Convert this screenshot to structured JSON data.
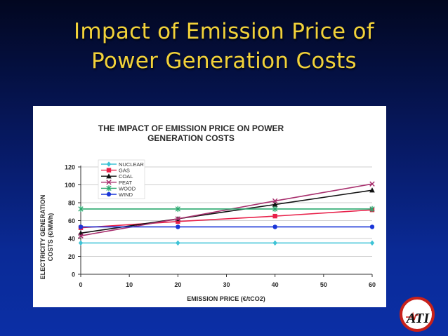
{
  "slide": {
    "title_line1": "Impact of Emission Price of",
    "title_line2": "Power Generation Costs"
  },
  "logo": {
    "text": "ATI"
  },
  "chart_data": {
    "type": "line",
    "title_line1": "THE IMPACT OF EMISSION PRICE ON POWER",
    "title_line2": "GENERATION COSTS",
    "xlabel": "EMISSION PRICE (€/tCO2)",
    "ylabel_line1": "ELECTRICITY GENERATION",
    "ylabel_line2": "COSTS (€/MWh)",
    "xlim": [
      0,
      60
    ],
    "ylim": [
      0,
      120
    ],
    "x_ticks": [
      0,
      10,
      20,
      30,
      40,
      50,
      60
    ],
    "y_ticks": [
      0,
      20,
      40,
      60,
      80,
      100,
      120
    ],
    "grid": "horizontal",
    "legend_position": "top-left",
    "series": [
      {
        "name": "NUCLEAR",
        "color": "#3ec3d6",
        "marker": "diamond",
        "x": [
          0,
          20,
          40,
          60
        ],
        "y": [
          35,
          35,
          35,
          35
        ]
      },
      {
        "name": "GAS",
        "color": "#e8214a",
        "marker": "square",
        "x": [
          0,
          20,
          40,
          60
        ],
        "y": [
          52,
          59,
          65,
          72
        ]
      },
      {
        "name": "COAL",
        "color": "#111111",
        "marker": "triangle",
        "x": [
          0,
          20,
          40,
          60
        ],
        "y": [
          46,
          62,
          78,
          94
        ]
      },
      {
        "name": "PEAT",
        "color": "#a8306e",
        "marker": "x",
        "x": [
          0,
          20,
          40,
          60
        ],
        "y": [
          43,
          62,
          82,
          101
        ]
      },
      {
        "name": "WOOD",
        "color": "#2aa86e",
        "marker": "star",
        "x": [
          0,
          20,
          40,
          60
        ],
        "y": [
          73,
          73,
          73,
          73
        ]
      },
      {
        "name": "WIND",
        "color": "#1a36d8",
        "marker": "circle",
        "x": [
          0,
          20,
          40,
          60
        ],
        "y": [
          53,
          53,
          53,
          53
        ]
      }
    ]
  }
}
